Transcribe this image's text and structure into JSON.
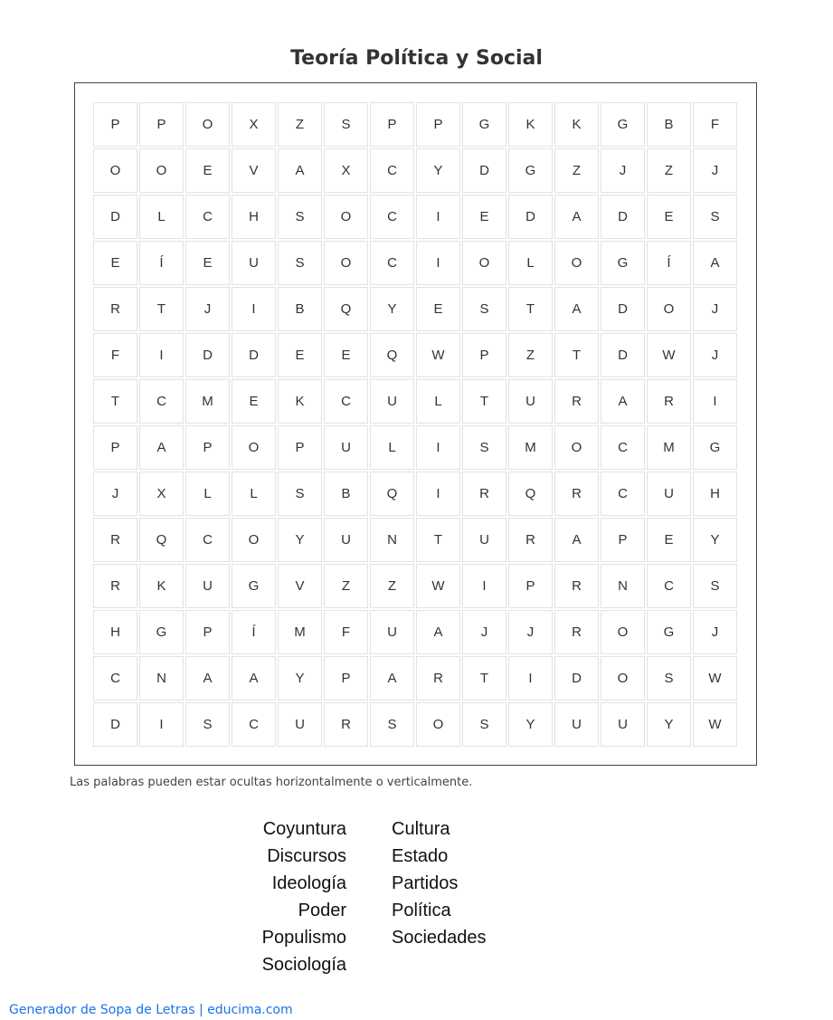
{
  "title": "Teoría Política y Social",
  "grid": [
    [
      "P",
      "P",
      "O",
      "X",
      "Z",
      "S",
      "P",
      "P",
      "G",
      "K",
      "K",
      "G",
      "B",
      "F"
    ],
    [
      "O",
      "O",
      "E",
      "V",
      "A",
      "X",
      "C",
      "Y",
      "D",
      "G",
      "Z",
      "J",
      "Z",
      "J"
    ],
    [
      "D",
      "L",
      "C",
      "H",
      "S",
      "O",
      "C",
      "I",
      "E",
      "D",
      "A",
      "D",
      "E",
      "S"
    ],
    [
      "E",
      "Í",
      "E",
      "U",
      "S",
      "O",
      "C",
      "I",
      "O",
      "L",
      "O",
      "G",
      "Í",
      "A"
    ],
    [
      "R",
      "T",
      "J",
      "I",
      "B",
      "Q",
      "Y",
      "E",
      "S",
      "T",
      "A",
      "D",
      "O",
      "J"
    ],
    [
      "F",
      "I",
      "D",
      "D",
      "E",
      "E",
      "Q",
      "W",
      "P",
      "Z",
      "T",
      "D",
      "W",
      "J"
    ],
    [
      "T",
      "C",
      "M",
      "E",
      "K",
      "C",
      "U",
      "L",
      "T",
      "U",
      "R",
      "A",
      "R",
      "I"
    ],
    [
      "P",
      "A",
      "P",
      "O",
      "P",
      "U",
      "L",
      "I",
      "S",
      "M",
      "O",
      "C",
      "M",
      "G"
    ],
    [
      "J",
      "X",
      "L",
      "L",
      "S",
      "B",
      "Q",
      "I",
      "R",
      "Q",
      "R",
      "C",
      "U",
      "H"
    ],
    [
      "R",
      "Q",
      "C",
      "O",
      "Y",
      "U",
      "N",
      "T",
      "U",
      "R",
      "A",
      "P",
      "E",
      "Y"
    ],
    [
      "R",
      "K",
      "U",
      "G",
      "V",
      "Z",
      "Z",
      "W",
      "I",
      "P",
      "R",
      "N",
      "C",
      "S"
    ],
    [
      "H",
      "G",
      "P",
      "Í",
      "M",
      "F",
      "U",
      "A",
      "J",
      "J",
      "R",
      "O",
      "G",
      "J"
    ],
    [
      "C",
      "N",
      "A",
      "A",
      "Y",
      "P",
      "A",
      "R",
      "T",
      "I",
      "D",
      "O",
      "S",
      "W"
    ],
    [
      "D",
      "I",
      "S",
      "C",
      "U",
      "R",
      "S",
      "O",
      "S",
      "Y",
      "U",
      "U",
      "Y",
      "W"
    ]
  ],
  "hint": "Las palabras pueden estar ocultas horizontalmente o verticalmente.",
  "words_left": [
    "Coyuntura",
    "Discursos",
    "Ideología",
    "Poder",
    "Populismo",
    "Sociología"
  ],
  "words_right": [
    "Cultura",
    "Estado",
    "Partidos",
    "Política",
    "Sociedades"
  ],
  "footer": "Generador de Sopa de Letras | educima.com"
}
